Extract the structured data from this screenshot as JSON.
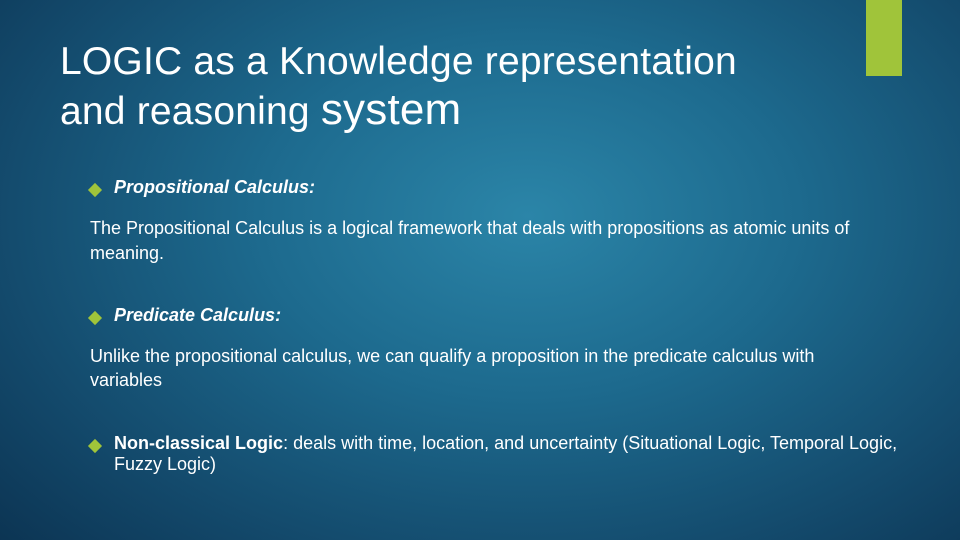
{
  "accent_color": "#a0c43a",
  "background": {
    "gradient_center": "#2b85a8",
    "gradient_mid": "#13496b",
    "gradient_edge": "#072540"
  },
  "text_color": "#ffffff",
  "title": {
    "line1": "LOGIC as a Knowledge representation",
    "line2_a": "and reasoning ",
    "line2_b": "system",
    "fontsize": 39,
    "big_fontsize": 44
  },
  "sections": [
    {
      "heading": "Propositional Calculus:",
      "heading_style": "bold-italic",
      "body": "The Propositional Calculus is a logical framework that deals with propositions as atomic units of meaning."
    },
    {
      "heading": "Predicate Calculus:",
      "heading_style": "bold-italic",
      "body": "Unlike the propositional calculus, we can qualify a proposition in the predicate calculus with variables"
    },
    {
      "heading_bold": "Non-classical Logic",
      "heading_rest": ": deals with time, location, and uncertainty (Situational Logic, Temporal Logic, Fuzzy Logic)",
      "heading_style": "mixed",
      "body": ""
    }
  ],
  "typography": {
    "body_fontsize": 18,
    "bullet_fontsize": 18,
    "font_family": "Arial"
  }
}
